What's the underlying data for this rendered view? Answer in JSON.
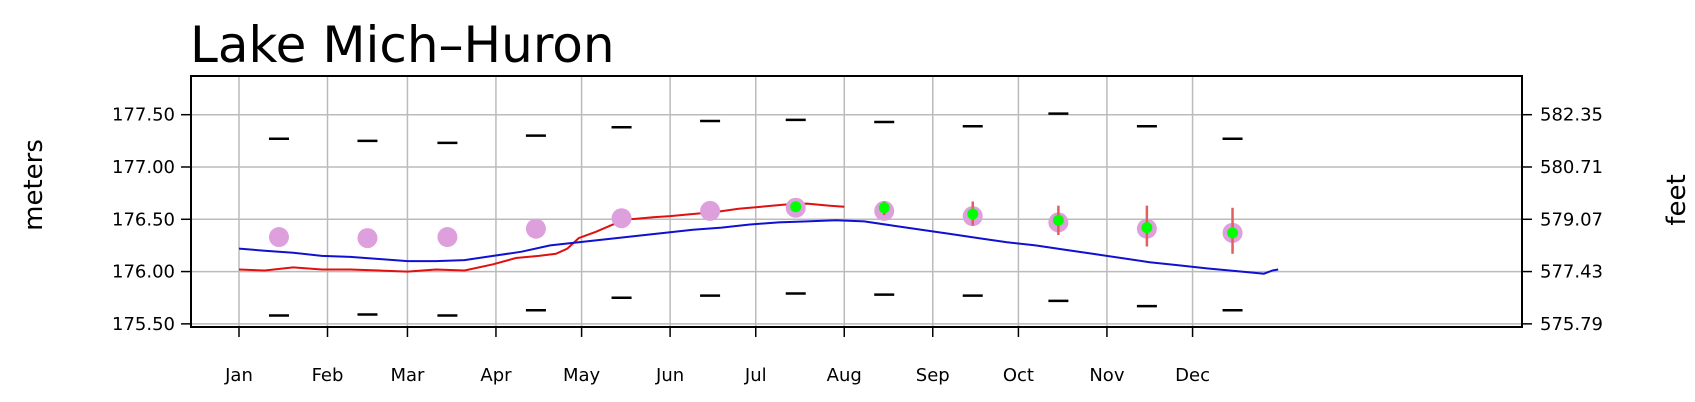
{
  "chart_data": {
    "type": "line",
    "title": "Lake Mich–Huron",
    "ylabel": "meters",
    "ylabel_right": "feet",
    "ylim": [
      175.47,
      177.87
    ],
    "y_ticks": [
      175.5,
      176.0,
      176.5,
      177.0,
      177.5
    ],
    "y_tick_labels": [
      "175.50",
      "176.00",
      "176.50",
      "177.00",
      "177.50"
    ],
    "y2_ticks": [
      {
        "label": "575.79",
        "value": 175.5
      },
      {
        "label": "577.43",
        "value": 176.0
      },
      {
        "label": "579.07",
        "value": 176.5
      },
      {
        "label": "580.71",
        "value": 177.0
      },
      {
        "label": "582.35",
        "value": 177.5
      }
    ],
    "x_months": [
      "Jan",
      "Feb",
      "Mar",
      "Apr",
      "May",
      "Jun",
      "Jul",
      "Aug",
      "Sep",
      "Oct",
      "Nov",
      "Dec"
    ],
    "grid": true,
    "colors": {
      "red_line": "#e01010",
      "blue_line": "#1010d0",
      "mean_point": "#dda0dd",
      "forecast_point": "#00ff00",
      "error_bar": "#e06060",
      "range_mark": "#000000",
      "grid": "#bbbbbb"
    },
    "series": [
      {
        "kind": "line",
        "color_key": "red_line",
        "points": [
          [
            1,
            176.02
          ],
          [
            10,
            176.01
          ],
          [
            20,
            176.04
          ],
          [
            30,
            176.02
          ],
          [
            40,
            176.02
          ],
          [
            50,
            176.01
          ],
          [
            60,
            176.0
          ],
          [
            70,
            176.02
          ],
          [
            80,
            176.01
          ],
          [
            90,
            176.07
          ],
          [
            98,
            176.13
          ],
          [
            106,
            176.15
          ],
          [
            112,
            176.17
          ],
          [
            116,
            176.22
          ],
          [
            120,
            176.32
          ],
          [
            126,
            176.38
          ],
          [
            132,
            176.45
          ],
          [
            138,
            176.5
          ],
          [
            146,
            176.52
          ],
          [
            152,
            176.53
          ],
          [
            160,
            176.55
          ],
          [
            168,
            176.57
          ],
          [
            176,
            176.6
          ],
          [
            184,
            176.62
          ],
          [
            192,
            176.64
          ],
          [
            200,
            176.65
          ],
          [
            208,
            176.63
          ],
          [
            213,
            176.62
          ]
        ]
      },
      {
        "kind": "line",
        "color_key": "blue_line",
        "points": [
          [
            1,
            176.22
          ],
          [
            10,
            176.2
          ],
          [
            20,
            176.18
          ],
          [
            30,
            176.15
          ],
          [
            40,
            176.14
          ],
          [
            50,
            176.12
          ],
          [
            60,
            176.1
          ],
          [
            70,
            176.1
          ],
          [
            80,
            176.11
          ],
          [
            90,
            176.15
          ],
          [
            100,
            176.19
          ],
          [
            110,
            176.25
          ],
          [
            120,
            176.28
          ],
          [
            130,
            176.31
          ],
          [
            140,
            176.34
          ],
          [
            150,
            176.37
          ],
          [
            160,
            176.4
          ],
          [
            170,
            176.42
          ],
          [
            180,
            176.45
          ],
          [
            190,
            176.47
          ],
          [
            200,
            176.48
          ],
          [
            210,
            176.49
          ],
          [
            220,
            176.48
          ],
          [
            230,
            176.44
          ],
          [
            240,
            176.4
          ],
          [
            250,
            176.36
          ],
          [
            260,
            176.32
          ],
          [
            270,
            176.28
          ],
          [
            280,
            176.25
          ],
          [
            290,
            176.21
          ],
          [
            300,
            176.17
          ],
          [
            310,
            176.13
          ],
          [
            320,
            176.09
          ],
          [
            330,
            176.06
          ],
          [
            340,
            176.03
          ],
          [
            348,
            176.01
          ],
          [
            356,
            175.99
          ],
          [
            360,
            175.98
          ],
          [
            363,
            176.01
          ],
          [
            365,
            176.02
          ]
        ]
      }
    ],
    "monthly_range": [
      {
        "month": 1,
        "max": 177.27,
        "min": 175.58
      },
      {
        "month": 2,
        "max": 177.25,
        "min": 175.59
      },
      {
        "month": 3,
        "max": 177.23,
        "min": 175.58
      },
      {
        "month": 4,
        "max": 177.3,
        "min": 175.63
      },
      {
        "month": 5,
        "max": 177.38,
        "min": 175.75
      },
      {
        "month": 6,
        "max": 177.44,
        "min": 175.77
      },
      {
        "month": 7,
        "max": 177.45,
        "min": 175.79
      },
      {
        "month": 8,
        "max": 177.43,
        "min": 175.78
      },
      {
        "month": 9,
        "max": 177.39,
        "min": 175.77
      },
      {
        "month": 10,
        "max": 177.51,
        "min": 175.72
      },
      {
        "month": 11,
        "max": 177.39,
        "min": 175.67
      },
      {
        "month": 12,
        "max": 177.27,
        "min": 175.63
      }
    ],
    "monthly_mean": [
      {
        "month": 1,
        "value": 176.33
      },
      {
        "month": 2,
        "value": 176.32
      },
      {
        "month": 3,
        "value": 176.33
      },
      {
        "month": 4,
        "value": 176.41
      },
      {
        "month": 5,
        "value": 176.51
      },
      {
        "month": 6,
        "value": 176.58
      },
      {
        "month": 7,
        "value": 176.61
      },
      {
        "month": 8,
        "value": 176.58
      },
      {
        "month": 9,
        "value": 176.53
      },
      {
        "month": 10,
        "value": 176.47
      },
      {
        "month": 11,
        "value": 176.41
      },
      {
        "month": 12,
        "value": 176.37
      }
    ],
    "forecast": [
      {
        "month": 7,
        "value": 176.62,
        "low": 176.58,
        "high": 176.66
      },
      {
        "month": 8,
        "value": 176.61,
        "low": 176.54,
        "high": 176.67
      },
      {
        "month": 9,
        "value": 176.55,
        "low": 176.44,
        "high": 176.67
      },
      {
        "month": 10,
        "value": 176.49,
        "low": 176.35,
        "high": 176.63
      },
      {
        "month": 11,
        "value": 176.42,
        "low": 176.24,
        "high": 176.63
      },
      {
        "month": 12,
        "value": 176.37,
        "low": 176.17,
        "high": 176.61
      }
    ]
  }
}
